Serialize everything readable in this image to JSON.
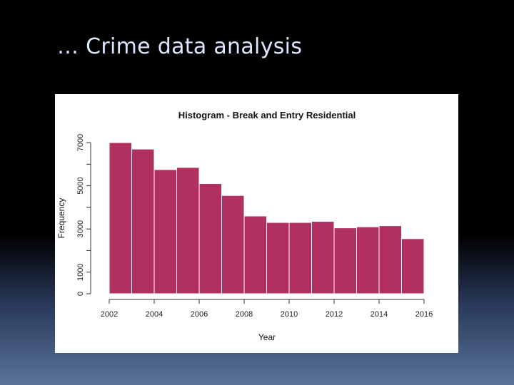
{
  "slide": {
    "title": "… Crime data analysis"
  },
  "chart_data": {
    "type": "bar",
    "title": "Histogram - Break and Entry Residential",
    "xlabel": "Year",
    "ylabel": "Frequency",
    "bar_color": "#b03060",
    "bins": [
      {
        "x0": 2002,
        "x1": 2003,
        "value": 7000
      },
      {
        "x0": 2003,
        "x1": 2004,
        "value": 6700
      },
      {
        "x0": 2004,
        "x1": 2005,
        "value": 5750
      },
      {
        "x0": 2005,
        "x1": 2006,
        "value": 5850
      },
      {
        "x0": 2006,
        "x1": 2007,
        "value": 5100
      },
      {
        "x0": 2007,
        "x1": 2008,
        "value": 4550
      },
      {
        "x0": 2008,
        "x1": 2009,
        "value": 3600
      },
      {
        "x0": 2009,
        "x1": 2010,
        "value": 3300
      },
      {
        "x0": 2010,
        "x1": 2011,
        "value": 3300
      },
      {
        "x0": 2011,
        "x1": 2012,
        "value": 3350
      },
      {
        "x0": 2012,
        "x1": 2013,
        "value": 3050
      },
      {
        "x0": 2013,
        "x1": 2014,
        "value": 3100
      },
      {
        "x0": 2014,
        "x1": 2015,
        "value": 3150
      },
      {
        "x0": 2015,
        "x1": 2016,
        "value": 2550
      }
    ],
    "xlim": [
      2002,
      2016
    ],
    "ylim": [
      0,
      7000
    ],
    "x_ticks": [
      "2002",
      "2004",
      "2006",
      "2008",
      "2010",
      "2012",
      "2014",
      "2016"
    ],
    "y_ticks": [
      "0",
      "1000",
      "3000",
      "5000",
      "7000"
    ],
    "y_tick_values": [
      0,
      1000,
      3000,
      5000,
      7000
    ],
    "y_minor_ticks": [
      2000,
      4000,
      6000
    ],
    "grid": false
  }
}
